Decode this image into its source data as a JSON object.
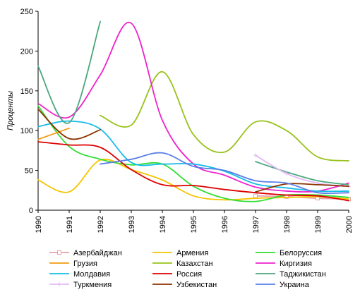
{
  "chart_data": {
    "type": "line",
    "title": "",
    "xlabel": "",
    "ylabel": "Проценты",
    "xlim": [
      1990,
      2000
    ],
    "ylim": [
      0,
      250
    ],
    "x_ticks": [
      1990,
      1991,
      1992,
      1993,
      1994,
      1995,
      1996,
      1997,
      1998,
      1999,
      2000
    ],
    "y_ticks": [
      0,
      50,
      100,
      150,
      200,
      250
    ],
    "grid": false,
    "legend_position": "bottom",
    "series": [
      {
        "name": "Азербайджан",
        "color": "#e8a0a8",
        "marker": "square",
        "points": [
          [
            1997,
            18
          ],
          [
            1998,
            17
          ],
          [
            1999,
            15
          ],
          [
            2000,
            14
          ]
        ]
      },
      {
        "name": "Армения",
        "color": "#f5c400",
        "marker": "none",
        "points": [
          [
            1990,
            38
          ],
          [
            1991,
            23
          ],
          [
            1992,
            63
          ],
          [
            1993,
            51
          ],
          [
            1994,
            38
          ],
          [
            1995,
            18
          ],
          [
            1996,
            13
          ],
          [
            1997,
            15
          ],
          [
            1998,
            16
          ],
          [
            1999,
            17
          ],
          [
            2000,
            14
          ]
        ]
      },
      {
        "name": "Белоруссия",
        "color": "#33dd33",
        "marker": "none",
        "points": [
          [
            1990,
            131
          ],
          [
            1991,
            80
          ],
          [
            1992,
            64
          ],
          [
            1993,
            57
          ],
          [
            1994,
            58
          ],
          [
            1995,
            30
          ],
          [
            1996,
            15
          ],
          [
            1997,
            11
          ],
          [
            1998,
            19
          ],
          [
            1999,
            19
          ],
          [
            2000,
            16
          ]
        ]
      },
      {
        "name": "Грузия",
        "color": "#f39c12",
        "marker": "none",
        "points": [
          [
            1990,
            89
          ],
          [
            1991,
            103
          ]
        ]
      },
      {
        "name": "Казахстан",
        "color": "#99c21c",
        "marker": "none",
        "points": [
          [
            1992,
            119
          ],
          [
            1993,
            107
          ],
          [
            1994,
            174
          ],
          [
            1995,
            95
          ],
          [
            1996,
            73
          ],
          [
            1997,
            111
          ],
          [
            1998,
            100
          ],
          [
            1999,
            67
          ],
          [
            2000,
            62
          ]
        ]
      },
      {
        "name": "Киргизия",
        "color": "#ee22cc",
        "marker": "none",
        "points": [
          [
            1990,
            134
          ],
          [
            1991,
            117
          ],
          [
            1992,
            170
          ],
          [
            1993,
            235
          ],
          [
            1994,
            113
          ],
          [
            1995,
            58
          ],
          [
            1996,
            44
          ],
          [
            1997,
            29
          ],
          [
            1998,
            24
          ],
          [
            1999,
            24
          ],
          [
            2000,
            34
          ]
        ]
      },
      {
        "name": "Молдавия",
        "color": "#14bce8",
        "marker": "none",
        "points": [
          [
            1990,
            105
          ],
          [
            1991,
            112
          ],
          [
            1992,
            102
          ],
          [
            1993,
            60
          ],
          [
            1994,
            58
          ],
          [
            1995,
            58
          ],
          [
            1996,
            49
          ],
          [
            1997,
            33
          ],
          [
            1998,
            28
          ],
          [
            1999,
            24
          ],
          [
            2000,
            24
          ]
        ]
      },
      {
        "name": "Россия",
        "color": "#dd0000",
        "marker": "none",
        "points": [
          [
            1990,
            86
          ],
          [
            1991,
            82
          ],
          [
            1992,
            79
          ],
          [
            1993,
            51
          ],
          [
            1994,
            32
          ],
          [
            1995,
            31
          ],
          [
            1996,
            26
          ],
          [
            1997,
            22
          ],
          [
            1998,
            19
          ],
          [
            1999,
            18
          ],
          [
            2000,
            12
          ]
        ]
      },
      {
        "name": "Таджикистан",
        "color": "#4aa87e",
        "marker": "none",
        "points": [
          [
            1990,
            181
          ],
          [
            1991,
            110
          ],
          [
            1992,
            237
          ],
          [
            1997,
            61
          ],
          [
            1998,
            48
          ],
          [
            1999,
            37
          ],
          [
            2000,
            32
          ]
        ]
      },
      {
        "name": "Туркмения",
        "color": "#e4b8f4",
        "marker": "plus",
        "points": [
          [
            1997,
            69
          ],
          [
            1998,
            46
          ],
          [
            1999,
            34
          ],
          [
            2000,
            30
          ]
        ]
      },
      {
        "name": "Узбекистан",
        "color": "#8b3300",
        "marker": "none",
        "points": [
          [
            1990,
            127
          ],
          [
            1991,
            90
          ],
          [
            1992,
            101
          ],
          [
            1997,
            23
          ],
          [
            1998,
            33
          ],
          [
            1999,
            32
          ],
          [
            2000,
            30
          ]
        ]
      },
      {
        "name": "Украина",
        "color": "#5a7fe8",
        "marker": "none",
        "points": [
          [
            1992,
            58
          ],
          [
            1993,
            64
          ],
          [
            1994,
            72
          ],
          [
            1995,
            55
          ],
          [
            1996,
            50
          ],
          [
            1997,
            37
          ],
          [
            1998,
            34
          ],
          [
            1999,
            22
          ],
          [
            2000,
            22
          ]
        ]
      }
    ]
  }
}
